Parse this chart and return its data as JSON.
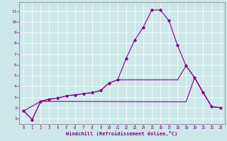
{
  "xlabel": "Windchill (Refroidissement éolien,°C)",
  "bg_color": "#cce8e8",
  "line_color": "#880088",
  "xlim": [
    -0.5,
    23.5
  ],
  "ylim": [
    0.5,
    11.8
  ],
  "xticks": [
    0,
    1,
    2,
    3,
    4,
    5,
    6,
    7,
    8,
    9,
    10,
    11,
    12,
    13,
    14,
    15,
    16,
    17,
    18,
    19,
    20,
    21,
    22,
    23
  ],
  "yticks": [
    1,
    2,
    3,
    4,
    5,
    6,
    7,
    8,
    9,
    10,
    11
  ],
  "line1_x": [
    0,
    1,
    2,
    3,
    4,
    5,
    6,
    7,
    8,
    9,
    10,
    11,
    12,
    13,
    14,
    15,
    16,
    17,
    18,
    19,
    20,
    21,
    22,
    23
  ],
  "line1_y": [
    1.7,
    0.9,
    2.6,
    2.8,
    2.9,
    3.1,
    3.2,
    3.3,
    3.4,
    3.6,
    4.3,
    4.6,
    6.6,
    8.3,
    9.5,
    11.1,
    11.1,
    10.1,
    7.8,
    5.9,
    4.8,
    3.4,
    2.1,
    2.0
  ],
  "line2_x": [
    0,
    1,
    2,
    3,
    4,
    5,
    6,
    7,
    8,
    9,
    10,
    11,
    12,
    13,
    14,
    15,
    16,
    17,
    18,
    19,
    20,
    21,
    22,
    23
  ],
  "line2_y": [
    1.7,
    0.9,
    2.6,
    2.8,
    2.9,
    3.1,
    3.2,
    3.3,
    3.4,
    3.6,
    4.3,
    4.6,
    4.6,
    4.6,
    4.6,
    4.6,
    4.6,
    4.6,
    4.6,
    5.9,
    4.8,
    3.4,
    2.1,
    2.0
  ],
  "line3_x": [
    0,
    2,
    19,
    20,
    21,
    22,
    23
  ],
  "line3_y": [
    1.7,
    2.6,
    2.55,
    4.8,
    3.4,
    2.1,
    2.0
  ]
}
